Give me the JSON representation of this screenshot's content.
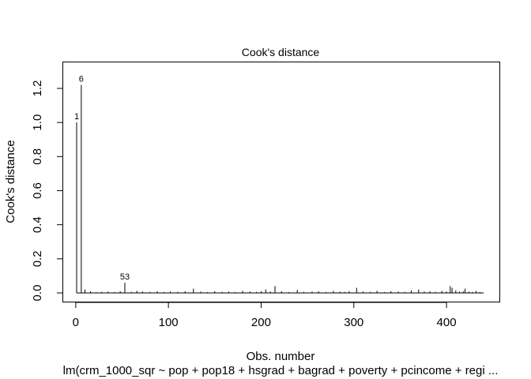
{
  "chart_data": {
    "type": "bar",
    "title": "Cook's distance",
    "xlabel": "Obs. number",
    "ylabel": "Cook's distance",
    "subtitle": "lm(crm_1000_sqr ~ pop + pop18 + hsgrad + bagrad + poverty + pcincome + regi ...",
    "xlim": [
      1,
      440
    ],
    "ylim": [
      0,
      1.26
    ],
    "x_ticks": [
      0,
      100,
      200,
      300,
      400
    ],
    "x_tick_labels": [
      "0",
      "100",
      "200",
      "300",
      "400"
    ],
    "y_ticks": [
      0.0,
      0.2,
      0.4,
      0.6,
      0.8,
      1.0,
      1.2
    ],
    "y_tick_labels": [
      "0.0",
      "0.2",
      "0.4",
      "0.6",
      "0.8",
      "1.0",
      "1.2"
    ],
    "grid": false,
    "labeled_points": [
      {
        "label": "1",
        "x": 1,
        "y": 1.0
      },
      {
        "label": "6",
        "x": 6,
        "y": 1.22
      },
      {
        "label": "53",
        "x": 53,
        "y": 0.06
      }
    ],
    "series": [
      {
        "x": [
          1,
          6,
          53,
          10,
          16,
          22,
          28,
          35,
          42,
          48,
          60,
          66,
          72,
          80,
          88,
          95,
          102,
          110,
          118,
          127,
          135,
          142,
          150,
          158,
          165,
          172,
          180,
          188,
          195,
          200,
          205,
          210,
          215,
          222,
          230,
          239,
          246,
          255,
          262,
          270,
          278,
          285,
          290,
          295,
          303,
          310,
          318,
          325,
          333,
          340,
          348,
          355,
          362,
          370,
          376,
          382,
          388,
          395,
          400,
          404,
          406,
          410,
          414,
          418,
          420,
          424,
          428,
          432,
          436
        ],
        "values": [
          1.0,
          1.22,
          0.06,
          0.02,
          0.01,
          0.004,
          0.006,
          0.008,
          0.005,
          0.01,
          0.006,
          0.012,
          0.008,
          0.006,
          0.01,
          0.005,
          0.008,
          0.006,
          0.01,
          0.025,
          0.008,
          0.005,
          0.01,
          0.006,
          0.008,
          0.005,
          0.012,
          0.008,
          0.006,
          0.01,
          0.02,
          0.008,
          0.04,
          0.01,
          0.005,
          0.018,
          0.006,
          0.008,
          0.01,
          0.005,
          0.012,
          0.008,
          0.006,
          0.01,
          0.03,
          0.008,
          0.006,
          0.012,
          0.005,
          0.01,
          0.008,
          0.006,
          0.015,
          0.02,
          0.008,
          0.01,
          0.006,
          0.012,
          0.008,
          0.04,
          0.03,
          0.015,
          0.008,
          0.01,
          0.025,
          0.008,
          0.006,
          0.012,
          0.005
        ]
      }
    ]
  }
}
